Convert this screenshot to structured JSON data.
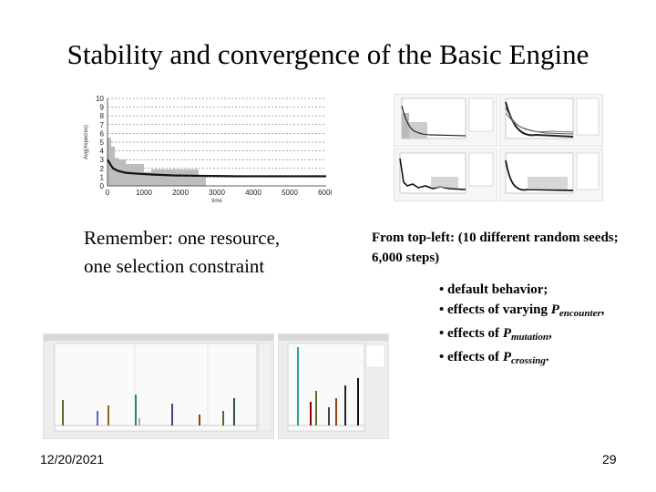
{
  "slide": {
    "title": "Stability and convergence of the Basic Engine",
    "left_note_line1": "Remember: one resource,",
    "left_note_line2": "one selection constraint",
    "right_note_line1": "From top-left: (10 different random seeds;",
    "right_note_line2": "6,000 steps)",
    "bullets": [
      {
        "text": "default behavior;"
      },
      {
        "text": "effects of varying ",
        "var": "P",
        "sub": "encounter",
        "tail": ","
      },
      {
        "text": "effects of ",
        "var": "P",
        "sub": "mutation",
        "tail": ","
      },
      {
        "text": "effects of ",
        "var": "P",
        "sub": "crossing",
        "tail": "."
      }
    ],
    "date": "12/20/2021",
    "page_number": "29"
  },
  "chart_data": {
    "type": "line",
    "xlabel": "time",
    "ylabel": "Avg(#species)",
    "x": [
      0,
      150,
      300,
      500,
      800,
      1200,
      1800,
      2500,
      3500,
      4500,
      5500,
      6000
    ],
    "series": [
      {
        "values": [
          3.0,
          2.0,
          1.7,
          1.5,
          1.4,
          1.3,
          1.2,
          1.15,
          1.1,
          1.1,
          1.1,
          1.1
        ]
      }
    ],
    "bars_x": [
      0,
      100,
      200,
      300,
      500,
      1000,
      1200,
      2500
    ],
    "bars_values": [
      5.5,
      4.5,
      3.2,
      3.0,
      2.5,
      1.6,
      1.9,
      1.2
    ],
    "xticks": [
      "0",
      "1000",
      "2000",
      "3000",
      "4000",
      "5000",
      "6000"
    ],
    "yticks": [
      "0",
      "1",
      "2",
      "3",
      "4",
      "5",
      "6",
      "7",
      "8",
      "9",
      "10"
    ],
    "xlim": [
      0,
      6000
    ],
    "ylim": [
      0,
      10
    ],
    "grid": true
  }
}
